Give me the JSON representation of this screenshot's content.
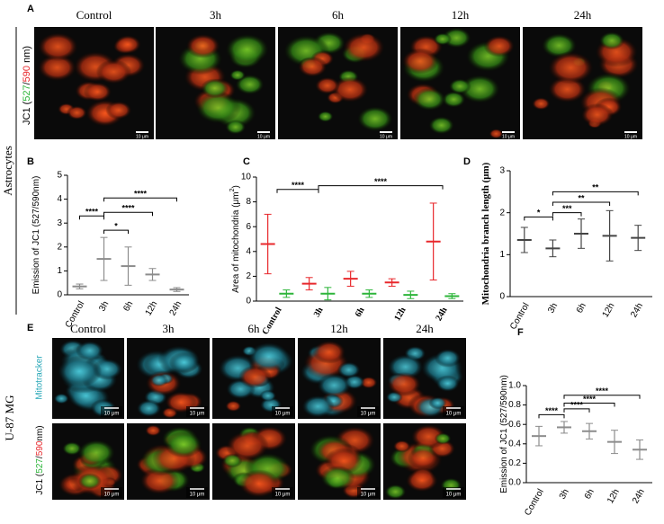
{
  "panel_labels": [
    "A",
    "B",
    "C",
    "D",
    "E",
    "F"
  ],
  "row_label_astro": "Astrocytes",
  "row_label_u87": "U-87 MG",
  "panel_a": {
    "titles": [
      "Control",
      "3h",
      "6h",
      "12h",
      "24h"
    ],
    "ylabel": [
      "JC1 (",
      "527",
      "/",
      "590",
      " nm)"
    ],
    "scale_bar": "10 μm"
  },
  "panel_e": {
    "titles": [
      "Control",
      "3h",
      "6h",
      "12h",
      "24h"
    ],
    "row1_label": "Mitotracker",
    "row2_label": [
      "JC1 (",
      "527",
      "/",
      "590",
      "nm)"
    ],
    "scale_bar": "10 μm"
  },
  "chart_data": [
    {
      "type": "dotplot",
      "ylabel": [
        "Emission of JC1 (527/590nm)"
      ],
      "categories": [
        "Control",
        "3h",
        "6h",
        "12h",
        "24h"
      ],
      "ylim": [
        0,
        5
      ],
      "yticks": [
        0,
        1,
        2,
        3,
        4,
        5
      ],
      "series": [
        {
          "color": "#8c8c8c",
          "means": [
            0.35,
            1.5,
            1.2,
            0.85,
            0.22
          ],
          "sd": [
            0.1,
            0.9,
            0.8,
            0.25,
            0.08
          ]
        }
      ],
      "brackets": [
        {
          "from": 0,
          "to": 1,
          "y": 3.3,
          "label": "****"
        },
        {
          "from": 1,
          "to": 2,
          "y": 2.7,
          "label": "*"
        },
        {
          "from": 1,
          "to": 3,
          "y": 3.45,
          "label": "****"
        },
        {
          "from": 1,
          "to": 4,
          "y": 4.05,
          "label": "****"
        }
      ]
    },
    {
      "type": "dotplot",
      "ylabel": [
        "Area of mitochondria (μm",
        "2",
        ")"
      ],
      "categories": [
        "Control",
        "3h",
        "6h",
        "12h",
        "24h"
      ],
      "ylim": [
        0,
        10
      ],
      "yticks": [
        0,
        2,
        4,
        6,
        8,
        10
      ],
      "series": [
        {
          "color": "#e8282c",
          "means": [
            4.6,
            1.4,
            1.8,
            1.5,
            4.8
          ],
          "sd": [
            2.4,
            0.5,
            0.6,
            0.3,
            3.1
          ]
        },
        {
          "color": "#2db53a",
          "means": [
            0.6,
            0.6,
            0.6,
            0.5,
            0.4
          ],
          "sd": [
            0.3,
            0.5,
            0.3,
            0.3,
            0.2
          ]
        }
      ],
      "brackets": [
        {
          "from": 0,
          "to": 1,
          "y": 9,
          "label": "****"
        },
        {
          "from": 1,
          "to": 4,
          "y": 9.3,
          "label": "****"
        }
      ]
    },
    {
      "type": "dotplot",
      "ylabel": [
        "Mitochondria branch length (μm)"
      ],
      "categories": [
        "Control",
        "3h",
        "6h",
        "12h",
        "24h"
      ],
      "ylim": [
        0,
        3
      ],
      "yticks": [
        0,
        1,
        2,
        3
      ],
      "series": [
        {
          "color": "#444444",
          "means": [
            1.35,
            1.15,
            1.5,
            1.45,
            1.4
          ],
          "sd": [
            0.3,
            0.2,
            0.35,
            0.6,
            0.3
          ]
        }
      ],
      "brackets": [
        {
          "from": 0,
          "to": 1,
          "y": 1.9,
          "label": "*"
        },
        {
          "from": 1,
          "to": 2,
          "y": 2.0,
          "label": "***"
        },
        {
          "from": 1,
          "to": 3,
          "y": 2.25,
          "label": "**"
        },
        {
          "from": 1,
          "to": 4,
          "y": 2.5,
          "label": "**"
        }
      ]
    },
    {
      "type": "dotplot",
      "ylabel": [
        "Emission of JC1 (527/590nm)"
      ],
      "categories": [
        "Control",
        "3h",
        "6h",
        "12h",
        "24h"
      ],
      "ylim": [
        0,
        1
      ],
      "yticks": [
        {
          "value": 0,
          "label": "0.0"
        },
        0.2,
        0.4,
        0.6,
        0.8,
        {
          "value": 1,
          "label": "1.0"
        }
      ],
      "series": [
        {
          "color": "#8c8c8c",
          "means": [
            0.48,
            0.57,
            0.53,
            0.42,
            0.34
          ],
          "sd": [
            0.1,
            0.06,
            0.08,
            0.12,
            0.1
          ]
        }
      ],
      "brackets": [
        {
          "from": 0,
          "to": 1,
          "y": 0.7,
          "label": "****"
        },
        {
          "from": 1,
          "to": 2,
          "y": 0.76,
          "label": "****"
        },
        {
          "from": 1,
          "to": 3,
          "y": 0.82,
          "label": "****"
        },
        {
          "from": 1,
          "to": 4,
          "y": 0.9,
          "label": "****"
        }
      ]
    }
  ]
}
